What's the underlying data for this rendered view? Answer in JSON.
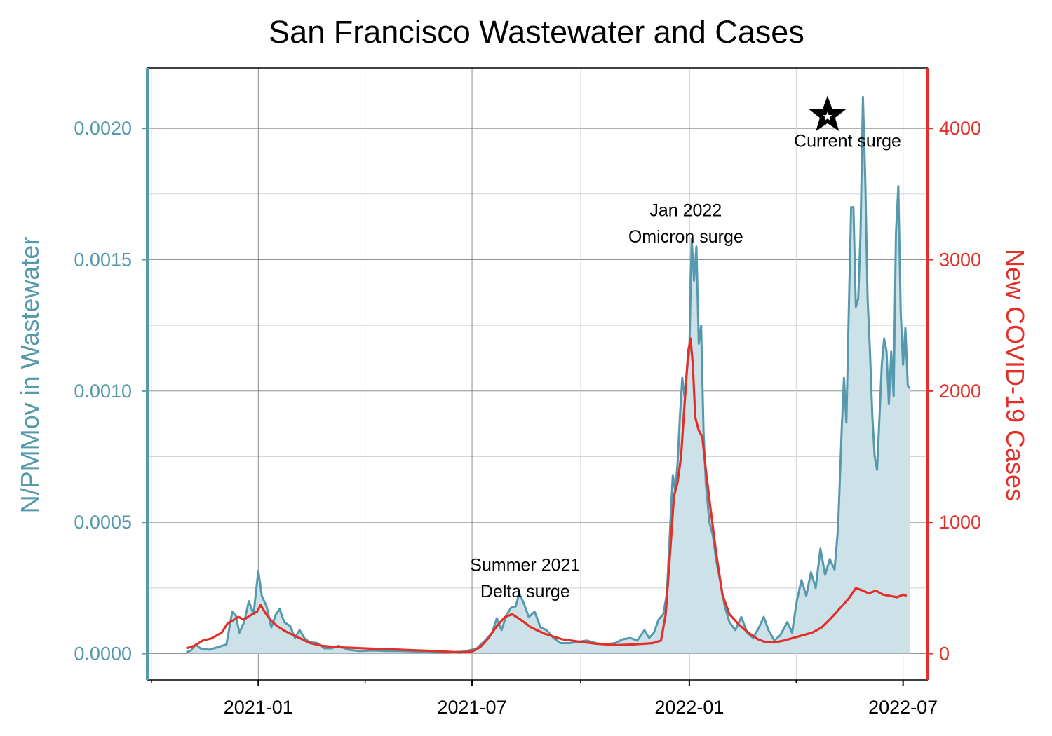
{
  "chart_data": {
    "type": "line",
    "title": "San Francisco Wastewater and Cases",
    "ylabel_left": "N/PMMov in Wastewater",
    "ylabel_right": "New COVID-19 Cases",
    "colors": {
      "wastewater": "#5599ad",
      "wastewater_fill": "#cce1e8",
      "cases": "#e32f28"
    },
    "xlim": [
      "2020-09-29",
      "2022-07-22"
    ],
    "ylim_left": [
      -0.0001,
      0.00223
    ],
    "ylim_right": [
      -200,
      4460
    ],
    "x_ticks": [
      "2021-01",
      "2021-07",
      "2022-01",
      "2022-07"
    ],
    "y_ticks_left": [
      "0.0000",
      "0.0005",
      "0.0010",
      "0.0015",
      "0.0020"
    ],
    "y_ticks_right": [
      "0",
      "1000",
      "2000",
      "3000",
      "4000"
    ],
    "grid": true,
    "series": [
      {
        "name": "",
        "axis": "left",
        "style": "line-with-fill",
        "points": [
          [
            "2020-11-01",
            5e-06
          ],
          [
            "2020-11-05",
            1.2e-05
          ],
          [
            "2020-11-09",
            3.5e-05
          ],
          [
            "2020-11-13",
            2e-05
          ],
          [
            "2020-11-20",
            1.5e-05
          ],
          [
            "2020-11-28",
            2.5e-05
          ],
          [
            "2020-12-05",
            3.5e-05
          ],
          [
            "2020-12-10",
            0.00016
          ],
          [
            "2020-12-13",
            0.000145
          ],
          [
            "2020-12-16",
            8e-05
          ],
          [
            "2020-12-20",
            0.00012
          ],
          [
            "2020-12-24",
            0.0002
          ],
          [
            "2020-12-28",
            0.00015
          ],
          [
            "2021-01-01",
            0.000315
          ],
          [
            "2021-01-04",
            0.00022
          ],
          [
            "2021-01-08",
            0.00018
          ],
          [
            "2021-01-12",
            0.0001
          ],
          [
            "2021-01-16",
            0.00015
          ],
          [
            "2021-01-19",
            0.00017
          ],
          [
            "2021-01-23",
            0.00012
          ],
          [
            "2021-01-28",
            0.000105
          ],
          [
            "2021-02-01",
            6e-05
          ],
          [
            "2021-02-05",
            9e-05
          ],
          [
            "2021-02-09",
            6e-05
          ],
          [
            "2021-02-13",
            4.5e-05
          ],
          [
            "2021-02-20",
            4e-05
          ],
          [
            "2021-02-26",
            2e-05
          ],
          [
            "2021-03-04",
            2e-05
          ],
          [
            "2021-03-10",
            3e-05
          ],
          [
            "2021-03-18",
            1.5e-05
          ],
          [
            "2021-03-28",
            1e-05
          ],
          [
            "2021-04-08",
            1.2e-05
          ],
          [
            "2021-04-20",
            1e-05
          ],
          [
            "2021-05-01",
            1e-05
          ],
          [
            "2021-05-15",
            8e-06
          ],
          [
            "2021-05-28",
            5e-06
          ],
          [
            "2021-06-10",
            5e-06
          ],
          [
            "2021-06-25",
            8e-06
          ],
          [
            "2021-07-05",
            2e-05
          ],
          [
            "2021-07-12",
            5e-05
          ],
          [
            "2021-07-18",
            8e-05
          ],
          [
            "2021-07-22",
            0.000135
          ],
          [
            "2021-07-26",
            9e-05
          ],
          [
            "2021-07-30",
            0.000145
          ],
          [
            "2021-08-03",
            0.000175
          ],
          [
            "2021-08-07",
            0.00018
          ],
          [
            "2021-08-10",
            0.00023
          ],
          [
            "2021-08-14",
            0.00019
          ],
          [
            "2021-08-18",
            0.00014
          ],
          [
            "2021-08-23",
            0.00016
          ],
          [
            "2021-08-28",
            0.0001
          ],
          [
            "2021-09-02",
            9e-05
          ],
          [
            "2021-09-08",
            6e-05
          ],
          [
            "2021-09-14",
            4e-05
          ],
          [
            "2021-09-22",
            4e-05
          ],
          [
            "2021-09-28",
            4.5e-05
          ],
          [
            "2021-10-06",
            5e-05
          ],
          [
            "2021-10-14",
            4e-05
          ],
          [
            "2021-10-22",
            3.5e-05
          ],
          [
            "2021-10-30",
            4e-05
          ],
          [
            "2021-11-06",
            5.5e-05
          ],
          [
            "2021-11-12",
            6e-05
          ],
          [
            "2021-11-18",
            5e-05
          ],
          [
            "2021-11-24",
            9e-05
          ],
          [
            "2021-11-28",
            6e-05
          ],
          [
            "2021-12-02",
            8e-05
          ],
          [
            "2021-12-06",
            0.00013
          ],
          [
            "2021-12-10",
            0.00015
          ],
          [
            "2021-12-13",
            0.00023
          ],
          [
            "2021-12-16",
            0.0005
          ],
          [
            "2021-12-18",
            0.00068
          ],
          [
            "2021-12-20",
            0.00062
          ],
          [
            "2021-12-22",
            0.00072
          ],
          [
            "2021-12-24",
            0.0009
          ],
          [
            "2021-12-26",
            0.00105
          ],
          [
            "2021-12-28",
            0.00098
          ],
          [
            "2021-12-30",
            0.00108
          ],
          [
            "2022-01-01",
            0.00115
          ],
          [
            "2022-01-03",
            0.00158
          ],
          [
            "2022-01-05",
            0.00142
          ],
          [
            "2022-01-07",
            0.00155
          ],
          [
            "2022-01-09",
            0.00118
          ],
          [
            "2022-01-11",
            0.00125
          ],
          [
            "2022-01-13",
            0.00085
          ],
          [
            "2022-01-15",
            0.00065
          ],
          [
            "2022-01-18",
            0.0005
          ],
          [
            "2022-01-21",
            0.00045
          ],
          [
            "2022-01-24",
            0.00035
          ],
          [
            "2022-01-27",
            0.00028
          ],
          [
            "2022-01-31",
            0.00018
          ],
          [
            "2022-02-04",
            0.00012
          ],
          [
            "2022-02-09",
            9e-05
          ],
          [
            "2022-02-14",
            0.00014
          ],
          [
            "2022-02-19",
            8e-05
          ],
          [
            "2022-02-24",
            6e-05
          ],
          [
            "2022-03-01",
            0.0001
          ],
          [
            "2022-03-05",
            0.00014
          ],
          [
            "2022-03-09",
            9e-05
          ],
          [
            "2022-03-14",
            5e-05
          ],
          [
            "2022-03-19",
            7e-05
          ],
          [
            "2022-03-25",
            0.00012
          ],
          [
            "2022-03-29",
            8e-05
          ],
          [
            "2022-04-02",
            0.0002
          ],
          [
            "2022-04-06",
            0.00028
          ],
          [
            "2022-04-10",
            0.00022
          ],
          [
            "2022-04-14",
            0.00031
          ],
          [
            "2022-04-18",
            0.00025
          ],
          [
            "2022-04-22",
            0.0004
          ],
          [
            "2022-04-26",
            0.0003
          ],
          [
            "2022-04-30",
            0.00036
          ],
          [
            "2022-05-04",
            0.00032
          ],
          [
            "2022-05-07",
            0.00048
          ],
          [
            "2022-05-10",
            0.00085
          ],
          [
            "2022-05-12",
            0.00105
          ],
          [
            "2022-05-14",
            0.00088
          ],
          [
            "2022-05-16",
            0.0013
          ],
          [
            "2022-05-18",
            0.0017
          ],
          [
            "2022-05-20",
            0.0017
          ],
          [
            "2022-05-22",
            0.00132
          ],
          [
            "2022-05-24",
            0.00135
          ],
          [
            "2022-05-26",
            0.0016
          ],
          [
            "2022-05-28",
            0.00212
          ],
          [
            "2022-05-30",
            0.0018
          ],
          [
            "2022-06-01",
            0.00135
          ],
          [
            "2022-06-03",
            0.00115
          ],
          [
            "2022-06-05",
            0.0009
          ],
          [
            "2022-06-07",
            0.00075
          ],
          [
            "2022-06-09",
            0.0007
          ],
          [
            "2022-06-11",
            0.0009
          ],
          [
            "2022-06-13",
            0.0011
          ],
          [
            "2022-06-15",
            0.0012
          ],
          [
            "2022-06-17",
            0.00115
          ],
          [
            "2022-06-19",
            0.00095
          ],
          [
            "2022-06-21",
            0.00115
          ],
          [
            "2022-06-23",
            0.00098
          ],
          [
            "2022-06-25",
            0.0016
          ],
          [
            "2022-06-27",
            0.00178
          ],
          [
            "2022-06-29",
            0.0013
          ],
          [
            "2022-07-01",
            0.0011
          ],
          [
            "2022-07-03",
            0.00124
          ],
          [
            "2022-07-05",
            0.00102
          ],
          [
            "2022-07-07",
            0.00101
          ]
        ]
      },
      {
        "name": "",
        "axis": "right",
        "style": "line",
        "points": [
          [
            "2020-11-01",
            40
          ],
          [
            "2020-11-08",
            60
          ],
          [
            "2020-11-15",
            100
          ],
          [
            "2020-11-22",
            115
          ],
          [
            "2020-12-01",
            160
          ],
          [
            "2020-12-06",
            230
          ],
          [
            "2020-12-10",
            250
          ],
          [
            "2020-12-15",
            280
          ],
          [
            "2020-12-20",
            260
          ],
          [
            "2020-12-25",
            290
          ],
          [
            "2020-12-31",
            320
          ],
          [
            "2021-01-03",
            370
          ],
          [
            "2021-01-07",
            310
          ],
          [
            "2021-01-12",
            250
          ],
          [
            "2021-01-17",
            210
          ],
          [
            "2021-01-24",
            170
          ],
          [
            "2021-01-31",
            140
          ],
          [
            "2021-02-07",
            110
          ],
          [
            "2021-02-14",
            80
          ],
          [
            "2021-02-24",
            60
          ],
          [
            "2021-03-07",
            50
          ],
          [
            "2021-03-20",
            45
          ],
          [
            "2021-04-01",
            40
          ],
          [
            "2021-04-15",
            35
          ],
          [
            "2021-05-01",
            30
          ],
          [
            "2021-05-15",
            25
          ],
          [
            "2021-06-01",
            20
          ],
          [
            "2021-06-20",
            10
          ],
          [
            "2021-07-01",
            15
          ],
          [
            "2021-07-08",
            50
          ],
          [
            "2021-07-15",
            120
          ],
          [
            "2021-07-22",
            210
          ],
          [
            "2021-07-29",
            280
          ],
          [
            "2021-08-04",
            300
          ],
          [
            "2021-08-11",
            260
          ],
          [
            "2021-08-20",
            200
          ],
          [
            "2021-09-01",
            150
          ],
          [
            "2021-09-15",
            110
          ],
          [
            "2021-10-01",
            90
          ],
          [
            "2021-10-15",
            75
          ],
          [
            "2021-11-01",
            65
          ],
          [
            "2021-11-15",
            70
          ],
          [
            "2021-12-01",
            80
          ],
          [
            "2021-12-08",
            100
          ],
          [
            "2021-12-12",
            300
          ],
          [
            "2021-12-16",
            800
          ],
          [
            "2021-12-19",
            1200
          ],
          [
            "2021-12-22",
            1300
          ],
          [
            "2021-12-25",
            1500
          ],
          [
            "2021-12-28",
            1900
          ],
          [
            "2021-12-31",
            2300
          ],
          [
            "2022-01-02",
            2400
          ],
          [
            "2022-01-04",
            2200
          ],
          [
            "2022-01-06",
            1800
          ],
          [
            "2022-01-09",
            1700
          ],
          [
            "2022-01-12",
            1650
          ],
          [
            "2022-01-15",
            1400
          ],
          [
            "2022-01-19",
            1100
          ],
          [
            "2022-01-24",
            750
          ],
          [
            "2022-01-29",
            450
          ],
          [
            "2022-02-04",
            300
          ],
          [
            "2022-02-12",
            220
          ],
          [
            "2022-02-20",
            160
          ],
          [
            "2022-02-28",
            110
          ],
          [
            "2022-03-06",
            90
          ],
          [
            "2022-03-14",
            85
          ],
          [
            "2022-03-22",
            100
          ],
          [
            "2022-03-30",
            120
          ],
          [
            "2022-04-07",
            140
          ],
          [
            "2022-04-15",
            160
          ],
          [
            "2022-04-23",
            200
          ],
          [
            "2022-05-01",
            270
          ],
          [
            "2022-05-08",
            340
          ],
          [
            "2022-05-16",
            420
          ],
          [
            "2022-05-22",
            500
          ],
          [
            "2022-05-28",
            480
          ],
          [
            "2022-06-02",
            460
          ],
          [
            "2022-06-08",
            480
          ],
          [
            "2022-06-14",
            450
          ],
          [
            "2022-06-20",
            440
          ],
          [
            "2022-06-26",
            430
          ],
          [
            "2022-07-01",
            450
          ],
          [
            "2022-07-04",
            440
          ]
        ]
      }
    ],
    "annotations": [
      {
        "lines": [
          "Summer 2021",
          "Delta surge"
        ],
        "x": "2021-08-15",
        "y_right": 630
      },
      {
        "lines": [
          "Jan 2022",
          "Omicron surge"
        ],
        "x": "2021-12-29",
        "y_right": 3330
      },
      {
        "lines": [
          "Current surge"
        ],
        "x": "2022-05-15",
        "y_right": 3860
      }
    ],
    "marker": {
      "shape": "star",
      "x": "2022-04-28",
      "y_left": 0.00205
    }
  }
}
